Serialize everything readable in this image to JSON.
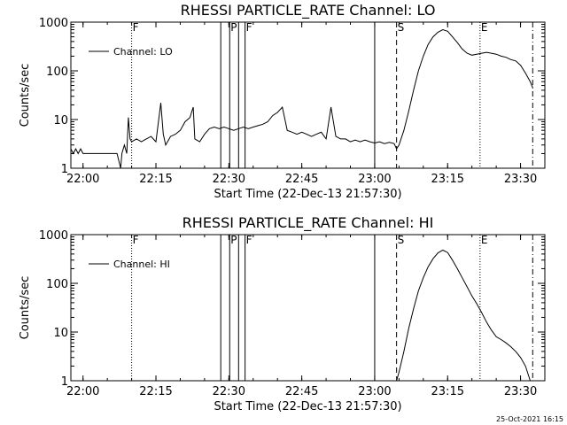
{
  "footer_stamp": "25-Oct-2021 16:15",
  "colors": {
    "background": "#ffffff",
    "foreground": "#000000"
  },
  "chart_data": [
    {
      "type": "line",
      "title": "RHESSI PARTICLE_RATE Channel: LO",
      "xlabel": "Start Time (22-Dec-13 21:57:30)",
      "ylabel": "Counts/sec",
      "yscale": "log",
      "xlim": [
        "21:57:30",
        "23:35:00"
      ],
      "ylim": [
        1,
        1000
      ],
      "xticks": [
        "22:00",
        "22:15",
        "22:30",
        "22:45",
        "23:00",
        "23:15",
        "23:30"
      ],
      "yticks": [
        "1",
        "10",
        "100",
        "1000"
      ],
      "legend": {
        "position": "top-left",
        "entries": [
          "Channel: LO"
        ]
      },
      "series": [
        {
          "name": "Channel: LO",
          "x": [
            "21:57:30",
            "21:58:00",
            "21:58:30",
            "21:59:00",
            "21:59:30",
            "22:00:00",
            "22:01:00",
            "22:02:00",
            "22:03:00",
            "22:04:00",
            "22:05:00",
            "22:06:00",
            "22:07:00",
            "22:07:45",
            "22:08:00",
            "22:08:30",
            "22:09:00",
            "22:09:20",
            "22:09:40",
            "22:10:00",
            "22:11:00",
            "22:12:00",
            "22:13:00",
            "22:14:00",
            "22:15:00",
            "22:16:00",
            "22:16:30",
            "22:17:00",
            "22:18:00",
            "22:19:00",
            "22:20:00",
            "22:21:00",
            "22:22:00",
            "22:22:40",
            "22:23:00",
            "22:24:00",
            "22:25:00",
            "22:26:00",
            "22:27:00",
            "22:28:00",
            "22:29:00",
            "22:30:00",
            "22:31:00",
            "22:32:00",
            "22:33:00",
            "22:34:00",
            "22:35:00",
            "22:36:00",
            "22:37:00",
            "22:38:00",
            "22:39:00",
            "22:40:00",
            "22:41:00",
            "22:42:00",
            "22:43:00",
            "22:44:00",
            "22:45:00",
            "22:46:00",
            "22:47:00",
            "22:48:00",
            "22:49:00",
            "22:50:00",
            "22:51:00",
            "22:52:00",
            "22:53:00",
            "22:54:00",
            "22:55:00",
            "22:56:00",
            "22:57:00",
            "22:58:00",
            "22:59:00",
            "23:00:00",
            "23:01:00",
            "23:02:00",
            "23:03:00",
            "23:04:00",
            "23:04:30",
            "23:05:00",
            "23:06:00",
            "23:07:00",
            "23:08:00",
            "23:09:00",
            "23:10:00",
            "23:11:00",
            "23:12:00",
            "23:13:00",
            "23:14:00",
            "23:15:00",
            "23:16:00",
            "23:17:00",
            "23:18:00",
            "23:19:00",
            "23:20:00",
            "23:21:00",
            "23:22:00",
            "23:23:00",
            "23:24:00",
            "23:25:00",
            "23:26:00",
            "23:27:00",
            "23:28:00",
            "23:29:00",
            "23:30:00",
            "23:31:00",
            "23:32:00",
            "23:32:30"
          ],
          "y": [
            2.5,
            2.0,
            2.5,
            2.0,
            2.5,
            2.0,
            2.0,
            2.0,
            2.0,
            2.0,
            2.0,
            2.0,
            2.0,
            1.0,
            2.0,
            3.0,
            2.0,
            11.0,
            4.0,
            3.5,
            4.0,
            3.5,
            4.0,
            4.5,
            3.5,
            22.0,
            5.0,
            3.0,
            4.5,
            5.0,
            6.0,
            9.0,
            11.0,
            18.0,
            4.0,
            3.5,
            5.0,
            6.5,
            7.0,
            6.5,
            7.0,
            6.5,
            6.0,
            6.5,
            7.0,
            6.5,
            7.0,
            7.5,
            8.0,
            9.0,
            12.0,
            14.0,
            18.0,
            6.0,
            5.5,
            5.0,
            5.5,
            5.0,
            4.5,
            5.0,
            5.5,
            4.0,
            18.0,
            4.5,
            4.0,
            4.0,
            3.5,
            3.8,
            3.5,
            3.8,
            3.5,
            3.3,
            3.5,
            3.2,
            3.4,
            3.2,
            2.5,
            3.0,
            6.0,
            15.0,
            40.0,
            100.0,
            200.0,
            350.0,
            500.0,
            620.0,
            700.0,
            650.0,
            500.0,
            380.0,
            280.0,
            230.0,
            210.0,
            220.0,
            230.0,
            240.0,
            230.0,
            220.0,
            200.0,
            190.0,
            170.0,
            160.0,
            130.0,
            90.0,
            60.0,
            45.0
          ]
        }
      ],
      "annotations": [
        {
          "label": "F",
          "time": "22:10:00",
          "style": "dotted"
        },
        {
          "label": "",
          "time": "22:28:20",
          "style": "solid"
        },
        {
          "label": "P",
          "time": "22:30:10",
          "style": "solid"
        },
        {
          "label": "",
          "time": "22:32:00",
          "style": "solid"
        },
        {
          "label": "F",
          "time": "22:33:20",
          "style": "solid"
        },
        {
          "label": "",
          "time": "23:00:00",
          "style": "solid"
        },
        {
          "label": "S",
          "time": "23:04:30",
          "style": "dashed"
        },
        {
          "label": "E",
          "time": "23:21:40",
          "style": "dotted"
        },
        {
          "label": "",
          "time": "23:32:30",
          "style": "dash-dot"
        }
      ]
    },
    {
      "type": "line",
      "title": "RHESSI PARTICLE_RATE Channel: HI",
      "xlabel": "Start Time (22-Dec-13 21:57:30)",
      "ylabel": "Counts/sec",
      "yscale": "log",
      "xlim": [
        "21:57:30",
        "23:35:00"
      ],
      "ylim": [
        1,
        1000
      ],
      "xticks": [
        "22:00",
        "22:15",
        "22:30",
        "22:45",
        "23:00",
        "23:15",
        "23:30"
      ],
      "yticks": [
        "1",
        "10",
        "100",
        "1000"
      ],
      "legend": {
        "position": "top-left",
        "entries": [
          "Channel: HI"
        ]
      },
      "series": [
        {
          "name": "Channel: HI",
          "x": [
            "23:04:30",
            "23:05:00",
            "23:06:00",
            "23:07:00",
            "23:08:00",
            "23:09:00",
            "23:10:00",
            "23:11:00",
            "23:12:00",
            "23:13:00",
            "23:14:00",
            "23:15:00",
            "23:16:00",
            "23:17:00",
            "23:18:00",
            "23:19:00",
            "23:20:00",
            "23:21:00",
            "23:22:00",
            "23:23:00",
            "23:24:00",
            "23:25:00",
            "23:26:00",
            "23:27:00",
            "23:28:00",
            "23:29:00",
            "23:30:00",
            "23:31:00",
            "23:32:00"
          ],
          "y": [
            1.0,
            1.5,
            4.0,
            12.0,
            30.0,
            70.0,
            130.0,
            220.0,
            320.0,
            420.0,
            480.0,
            430.0,
            300.0,
            200.0,
            130.0,
            85.0,
            55.0,
            38.0,
            25.0,
            16.0,
            11.0,
            8.0,
            7.0,
            6.0,
            5.0,
            4.0,
            3.0,
            2.0,
            1.0
          ]
        }
      ],
      "annotations": [
        {
          "label": "F",
          "time": "22:10:00",
          "style": "dotted"
        },
        {
          "label": "",
          "time": "22:28:20",
          "style": "solid"
        },
        {
          "label": "P",
          "time": "22:30:10",
          "style": "solid"
        },
        {
          "label": "",
          "time": "22:32:00",
          "style": "solid"
        },
        {
          "label": "F",
          "time": "22:33:20",
          "style": "solid"
        },
        {
          "label": "",
          "time": "23:00:00",
          "style": "solid"
        },
        {
          "label": "S",
          "time": "23:04:30",
          "style": "dashed"
        },
        {
          "label": "E",
          "time": "23:21:40",
          "style": "dotted"
        },
        {
          "label": "",
          "time": "23:32:30",
          "style": "dash-dot"
        }
      ]
    }
  ]
}
